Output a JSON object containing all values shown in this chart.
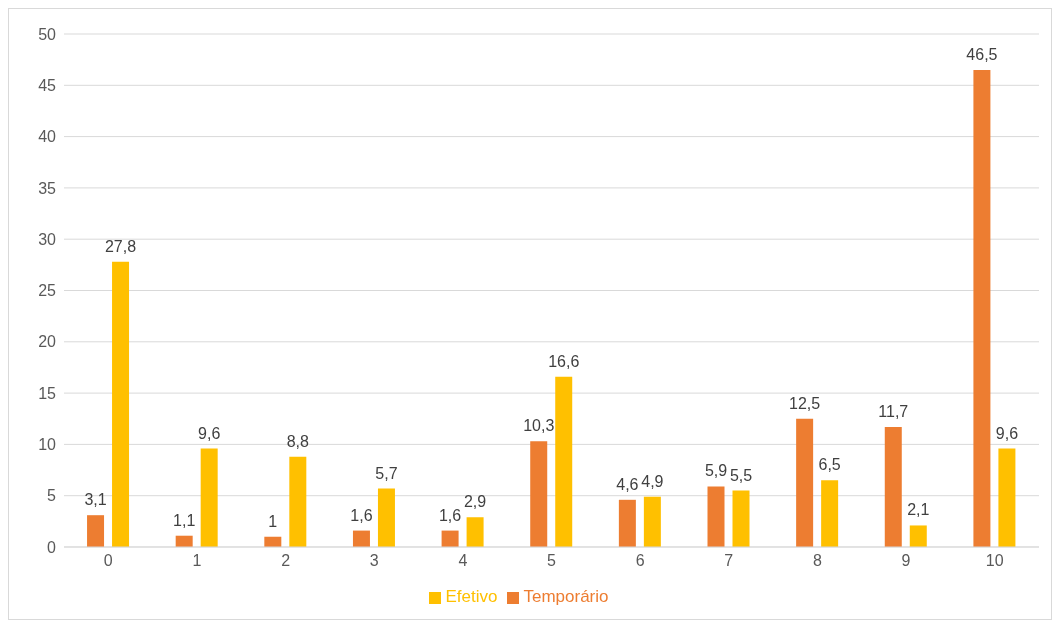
{
  "chart_data": {
    "type": "bar",
    "categories": [
      "0",
      "1",
      "2",
      "3",
      "4",
      "5",
      "6",
      "7",
      "8",
      "9",
      "10"
    ],
    "series": [
      {
        "name": "Temporário",
        "color": "#ed7d31",
        "values": [
          3.1,
          1.1,
          1,
          1.6,
          1.6,
          10.3,
          4.6,
          5.9,
          12.5,
          11.7,
          46.5
        ],
        "value_labels": [
          "3,1",
          "1,1",
          "1",
          "1,6",
          "1,6",
          "10,3",
          "4,6",
          "5,9",
          "12,5",
          "11,7",
          "46,5"
        ]
      },
      {
        "name": "Efetivo",
        "color": "#ffc000",
        "values": [
          27.8,
          9.6,
          8.8,
          5.7,
          2.9,
          16.6,
          4.9,
          5.5,
          6.5,
          2.1,
          9.6
        ],
        "value_labels": [
          "27,8",
          "9,6",
          "8,8",
          "5,7",
          "2,9",
          "16,6",
          "4,9",
          "5,5",
          "6,5",
          "2,1",
          "9,6"
        ]
      }
    ],
    "ylim": [
      0,
      50
    ],
    "yticks": [
      0,
      5,
      10,
      15,
      20,
      25,
      30,
      35,
      40,
      45,
      50
    ],
    "grid": "y",
    "legend": "bottom"
  }
}
